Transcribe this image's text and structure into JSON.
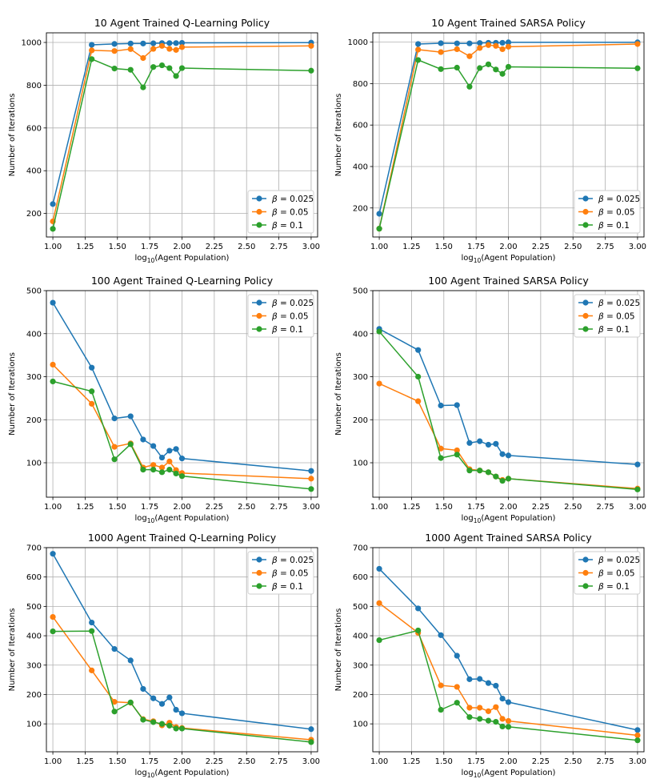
{
  "chart_data": [
    {
      "type": "line",
      "title": "10 Agent Trained Q-Learning Policy",
      "xlabel_base": "log",
      "xlabel_sub": "10",
      "xlabel_rest": "(Agent Population)",
      "ylabel": "Number of Iterations",
      "xlim": [
        0.95,
        3.05
      ],
      "ylim": [
        90,
        1045
      ],
      "xticks": [
        1.0,
        1.25,
        1.5,
        1.75,
        2.0,
        2.25,
        2.5,
        2.75,
        3.0
      ],
      "xtick_labels": [
        "1.00",
        "1.25",
        "1.50",
        "1.75",
        "2.00",
        "2.25",
        "2.50",
        "2.75",
        "3.00"
      ],
      "yticks": [
        200,
        400,
        600,
        800,
        1000
      ],
      "ytick_labels": [
        "200",
        "400",
        "600",
        "800",
        "1000"
      ],
      "legend_loc": "lower-right",
      "x": [
        1.0,
        1.301,
        1.477,
        1.602,
        1.699,
        1.778,
        1.845,
        1.903,
        1.954,
        2.0,
        3.0
      ],
      "series": [
        {
          "name": "β = 0.025",
          "beta": "0.025",
          "color": "#1f77b4",
          "values": [
            244,
            989,
            993,
            995,
            995,
            996,
            997,
            997,
            997,
            998,
            999
          ]
        },
        {
          "name": "β = 0.05",
          "beta": "0.05",
          "color": "#ff7f0e",
          "values": [
            163,
            963,
            960,
            969,
            927,
            970,
            984,
            970,
            965,
            978,
            984
          ]
        },
        {
          "name": "β = 0.1",
          "beta": "0.1",
          "color": "#2ca02c",
          "values": [
            128,
            922,
            878,
            872,
            790,
            885,
            893,
            880,
            843,
            880,
            868
          ]
        }
      ]
    },
    {
      "type": "line",
      "title": "10 Agent Trained SARSA Policy",
      "xlabel_base": "log",
      "xlabel_sub": "10",
      "xlabel_rest": "(Agent Population)",
      "ylabel": "Number of Iterations",
      "xlim": [
        0.95,
        3.05
      ],
      "ylim": [
        60,
        1045
      ],
      "xticks": [
        1.0,
        1.25,
        1.5,
        1.75,
        2.0,
        2.25,
        2.5,
        2.75,
        3.0
      ],
      "xtick_labels": [
        "1.00",
        "1.25",
        "1.50",
        "1.75",
        "2.00",
        "2.25",
        "2.50",
        "2.75",
        "3.00"
      ],
      "yticks": [
        200,
        400,
        600,
        800,
        1000
      ],
      "ytick_labels": [
        "200",
        "400",
        "600",
        "800",
        "1000"
      ],
      "legend_loc": "lower-right",
      "x": [
        1.0,
        1.301,
        1.477,
        1.602,
        1.699,
        1.778,
        1.845,
        1.903,
        1.954,
        2.0,
        3.0
      ],
      "series": [
        {
          "name": "β = 0.025",
          "beta": "0.025",
          "color": "#1f77b4",
          "values": [
            172,
            991,
            995,
            994,
            994,
            996,
            997,
            997,
            997,
            999,
            999
          ]
        },
        {
          "name": "β = 0.05",
          "beta": "0.05",
          "color": "#ff7f0e",
          "values": [
            100,
            964,
            952,
            966,
            932,
            972,
            986,
            982,
            966,
            978,
            991
          ]
        },
        {
          "name": "β = 0.1",
          "beta": "0.1",
          "color": "#2ca02c",
          "values": [
            100,
            914,
            870,
            877,
            785,
            875,
            893,
            868,
            847,
            881,
            874
          ]
        }
      ]
    },
    {
      "type": "line",
      "title": "100 Agent Trained Q-Learning Policy",
      "xlabel_base": "log",
      "xlabel_sub": "10",
      "xlabel_rest": "(Agent Population)",
      "ylabel": "Number of Iterations",
      "xlim": [
        0.95,
        3.05
      ],
      "ylim": [
        20,
        500
      ],
      "xticks": [
        1.0,
        1.25,
        1.5,
        1.75,
        2.0,
        2.25,
        2.5,
        2.75,
        3.0
      ],
      "xtick_labels": [
        "1.00",
        "1.25",
        "1.50",
        "1.75",
        "2.00",
        "2.25",
        "2.50",
        "2.75",
        "3.00"
      ],
      "yticks": [
        100,
        200,
        300,
        400,
        500
      ],
      "ytick_labels": [
        "100",
        "200",
        "300",
        "400",
        "500"
      ],
      "legend_loc": "upper-right",
      "x": [
        1.0,
        1.301,
        1.477,
        1.602,
        1.699,
        1.778,
        1.845,
        1.903,
        1.954,
        2.0,
        3.0
      ],
      "series": [
        {
          "name": "β = 0.025",
          "beta": "0.025",
          "color": "#1f77b4",
          "values": [
            472,
            321,
            203,
            208,
            154,
            139,
            112,
            128,
            132,
            110,
            81
          ]
        },
        {
          "name": "β = 0.05",
          "beta": "0.05",
          "color": "#ff7f0e",
          "values": [
            328,
            237,
            137,
            145,
            89,
            95,
            89,
            103,
            83,
            76,
            63
          ]
        },
        {
          "name": "β = 0.1",
          "beta": "0.1",
          "color": "#2ca02c",
          "values": [
            289,
            266,
            108,
            143,
            84,
            84,
            78,
            84,
            75,
            69,
            39
          ]
        }
      ]
    },
    {
      "type": "line",
      "title": "100 Agent Trained SARSA Policy",
      "xlabel_base": "log",
      "xlabel_sub": "10",
      "xlabel_rest": "(Agent Population)",
      "ylabel": "Number of Iterations",
      "xlim": [
        0.95,
        3.05
      ],
      "ylim": [
        20,
        500
      ],
      "xticks": [
        1.0,
        1.25,
        1.5,
        1.75,
        2.0,
        2.25,
        2.5,
        2.75,
        3.0
      ],
      "xtick_labels": [
        "1.00",
        "1.25",
        "1.50",
        "1.75",
        "2.00",
        "2.25",
        "2.50",
        "2.75",
        "3.00"
      ],
      "yticks": [
        100,
        200,
        300,
        400,
        500
      ],
      "ytick_labels": [
        "100",
        "200",
        "300",
        "400",
        "500"
      ],
      "legend_loc": "upper-right",
      "x": [
        1.0,
        1.301,
        1.477,
        1.602,
        1.699,
        1.778,
        1.845,
        1.903,
        1.954,
        2.0,
        3.0
      ],
      "series": [
        {
          "name": "β = 0.025",
          "beta": "0.025",
          "color": "#1f77b4",
          "values": [
            411,
            362,
            233,
            234,
            146,
            150,
            142,
            144,
            120,
            117,
            96
          ]
        },
        {
          "name": "β = 0.05",
          "beta": "0.05",
          "color": "#ff7f0e",
          "values": [
            284,
            243,
            133,
            129,
            85,
            82,
            78,
            68,
            60,
            63,
            40
          ]
        },
        {
          "name": "β = 0.1",
          "beta": "0.1",
          "color": "#2ca02c",
          "values": [
            405,
            300,
            111,
            119,
            82,
            82,
            78,
            68,
            58,
            63,
            38
          ]
        }
      ]
    },
    {
      "type": "line",
      "title": "1000 Agent Trained Q-Learning Policy",
      "xlabel_base": "log",
      "xlabel_sub": "10",
      "xlabel_rest": "(Agent Population)",
      "ylabel": "Number of Iterations",
      "xlim": [
        0.95,
        3.05
      ],
      "ylim": [
        5,
        700
      ],
      "xticks": [
        1.0,
        1.25,
        1.5,
        1.75,
        2.0,
        2.25,
        2.5,
        2.75,
        3.0
      ],
      "xtick_labels": [
        "1.00",
        "1.25",
        "1.50",
        "1.75",
        "2.00",
        "2.25",
        "2.50",
        "2.75",
        "3.00"
      ],
      "yticks": [
        100,
        200,
        300,
        400,
        500,
        600,
        700
      ],
      "ytick_labels": [
        "100",
        "200",
        "300",
        "400",
        "500",
        "600",
        "700"
      ],
      "legend_loc": "upper-right",
      "x": [
        1.0,
        1.301,
        1.477,
        1.602,
        1.699,
        1.778,
        1.845,
        1.903,
        1.954,
        2.0,
        3.0
      ],
      "series": [
        {
          "name": "β = 0.025",
          "beta": "0.025",
          "color": "#1f77b4",
          "values": [
            679,
            445,
            355,
            316,
            219,
            187,
            168,
            190,
            148,
            136,
            82
          ]
        },
        {
          "name": "β = 0.05",
          "beta": "0.05",
          "color": "#ff7f0e",
          "values": [
            464,
            282,
            175,
            172,
            116,
            109,
            95,
            104,
            89,
            86,
            46
          ]
        },
        {
          "name": "β = 0.1",
          "beta": "0.1",
          "color": "#2ca02c",
          "values": [
            415,
            416,
            142,
            173,
            114,
            106,
            100,
            94,
            84,
            84,
            38
          ]
        }
      ]
    },
    {
      "type": "line",
      "title": "1000 Agent Trained SARSA Policy",
      "xlabel_base": "log",
      "xlabel_sub": "10",
      "xlabel_rest": "(Agent Population)",
      "ylabel": "Number of Iterations",
      "xlim": [
        0.95,
        3.05
      ],
      "ylim": [
        5,
        700
      ],
      "xticks": [
        1.0,
        1.25,
        1.5,
        1.75,
        2.0,
        2.25,
        2.5,
        2.75,
        3.0
      ],
      "xtick_labels": [
        "1.00",
        "1.25",
        "1.50",
        "1.75",
        "2.00",
        "2.25",
        "2.50",
        "2.75",
        "3.00"
      ],
      "yticks": [
        100,
        200,
        300,
        400,
        500,
        600,
        700
      ],
      "ytick_labels": [
        "100",
        "200",
        "300",
        "400",
        "500",
        "600",
        "700"
      ],
      "legend_loc": "upper-right",
      "x": [
        1.0,
        1.301,
        1.477,
        1.602,
        1.699,
        1.778,
        1.845,
        1.903,
        1.954,
        2.0,
        3.0
      ],
      "series": [
        {
          "name": "β = 0.025",
          "beta": "0.025",
          "color": "#1f77b4",
          "values": [
            628,
            493,
            402,
            332,
            252,
            253,
            239,
            230,
            186,
            174,
            79
          ]
        },
        {
          "name": "β = 0.05",
          "beta": "0.05",
          "color": "#ff7f0e",
          "values": [
            511,
            410,
            231,
            226,
            155,
            155,
            143,
            157,
            117,
            110,
            61
          ]
        },
        {
          "name": "β = 0.1",
          "beta": "0.1",
          "color": "#2ca02c",
          "values": [
            385,
            418,
            148,
            172,
            123,
            117,
            111,
            107,
            91,
            90,
            44
          ]
        }
      ]
    }
  ]
}
